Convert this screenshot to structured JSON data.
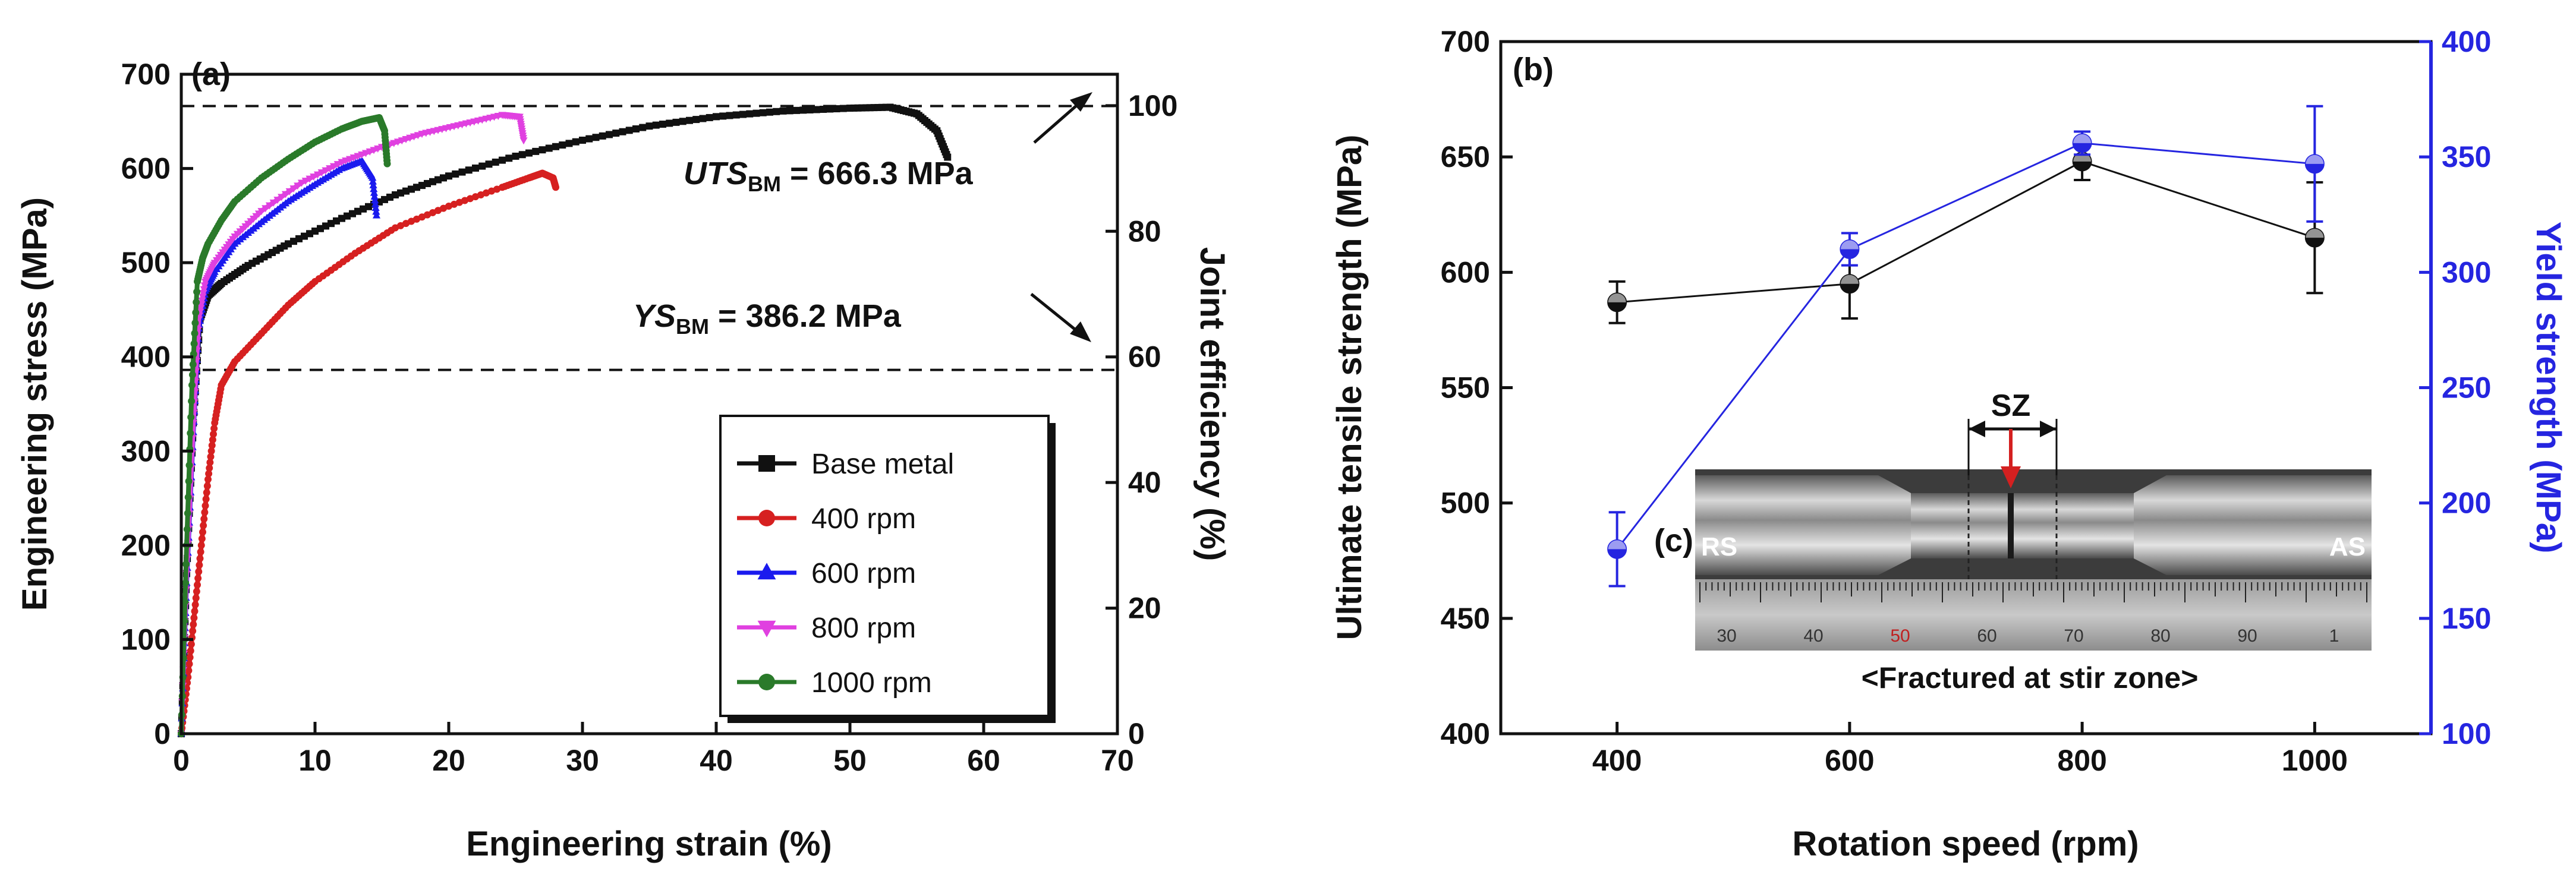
{
  "chart_data": [
    {
      "type": "line",
      "panel_label": "(a)",
      "xlabel": "Engineering strain (%)",
      "ylabel": "Engineering stress (MPa)",
      "y2label": "Joint efficiency (%)",
      "xlim": [
        0,
        70
      ],
      "ylim": [
        0,
        700
      ],
      "y2lim": [
        0,
        105
      ],
      "xticks": [
        0,
        10,
        20,
        30,
        40,
        50,
        60,
        70
      ],
      "yticks": [
        0,
        100,
        200,
        300,
        400,
        500,
        600,
        700
      ],
      "y2ticks": [
        0,
        20,
        40,
        60,
        80,
        100
      ],
      "reference_lines": [
        {
          "name": "UTS_BM",
          "y": 666.3
        },
        {
          "name": "YS_BM",
          "y": 386.2
        }
      ],
      "annotations": {
        "uts_main": "UTS",
        "uts_sub": "BM",
        "uts_value": " = 666.3 MPa",
        "ys_main": "YS",
        "ys_sub": "BM",
        "ys_value": " = 386.2 MPa"
      },
      "legend": {
        "position": "bottom-right"
      },
      "series": [
        {
          "name": "Base metal",
          "color": "#111111",
          "marker": "square",
          "x": [
            0,
            0.4,
            0.9,
            1.4,
            2,
            3,
            5,
            8,
            12,
            16,
            20,
            25,
            30,
            35,
            40,
            45,
            50,
            53,
            55,
            56.5,
            57.3
          ],
          "y": [
            0,
            170,
            330,
            440,
            465,
            478,
            497,
            520,
            547,
            572,
            592,
            613,
            630,
            645,
            655,
            661,
            664,
            665,
            658,
            640,
            612
          ]
        },
        {
          "name": "400 rpm",
          "color": "#d62020",
          "marker": "circle",
          "x": [
            0,
            0.5,
            1,
            1.5,
            2,
            2.5,
            3,
            4,
            6,
            8,
            10,
            13,
            16,
            20,
            24,
            26,
            27,
            27.8,
            28
          ],
          "y": [
            0,
            60,
            130,
            200,
            270,
            330,
            370,
            395,
            425,
            455,
            480,
            510,
            537,
            560,
            580,
            590,
            595,
            590,
            580
          ]
        },
        {
          "name": "600 rpm",
          "color": "#1a1aee",
          "marker": "triangle",
          "x": [
            0,
            0.4,
            0.9,
            1.3,
            1.8,
            2.5,
            4,
            6,
            8,
            10,
            12,
            13.5,
            14.3,
            14.6
          ],
          "y": [
            0,
            160,
            320,
            430,
            470,
            490,
            520,
            543,
            565,
            583,
            600,
            608,
            590,
            550
          ]
        },
        {
          "name": "800 rpm",
          "color": "#e040e0",
          "marker": "triangle-down",
          "x": [
            0,
            0.4,
            0.9,
            1.3,
            1.8,
            2.5,
            4,
            6,
            9,
            12,
            15,
            18,
            21,
            24,
            25.3,
            25.6
          ],
          "y": [
            0,
            170,
            330,
            440,
            480,
            500,
            528,
            555,
            585,
            607,
            623,
            637,
            647,
            657,
            655,
            630
          ]
        },
        {
          "name": "1000 rpm",
          "color": "#2a7a2a",
          "marker": "circle",
          "x": [
            0,
            0.4,
            0.8,
            1.2,
            1.6,
            2,
            3,
            4,
            6,
            8,
            10,
            12,
            13.5,
            14.8,
            15.2,
            15.4
          ],
          "y": [
            0,
            200,
            370,
            480,
            505,
            520,
            545,
            565,
            590,
            610,
            628,
            642,
            650,
            654,
            640,
            605
          ]
        }
      ]
    },
    {
      "type": "line",
      "panel_label": "(b)",
      "xlabel": "Rotation speed (rpm)",
      "ylabel": "Ultimate tensile strength (MPa)",
      "y2label": "Yield strength (MPa)",
      "xlim": [
        300,
        1100
      ],
      "ylim": [
        400,
        700
      ],
      "y2lim": [
        100,
        400
      ],
      "xticks": [
        400,
        600,
        800,
        1000
      ],
      "yticks": [
        400,
        450,
        500,
        550,
        600,
        650,
        700
      ],
      "y2ticks": [
        100,
        150,
        200,
        250,
        300,
        350,
        400
      ],
      "series": [
        {
          "name": "Ultimate tensile strength",
          "axis": "left",
          "color": "#111111",
          "x": [
            400,
            600,
            800,
            1000
          ],
          "y": [
            587,
            595,
            648,
            615
          ],
          "err": [
            9,
            15,
            8,
            24
          ]
        },
        {
          "name": "Yield strength",
          "axis": "right",
          "color": "#2525e0",
          "x": [
            400,
            600,
            800,
            1000
          ],
          "y": [
            180,
            310,
            356,
            347
          ],
          "err": [
            16,
            7,
            5,
            25
          ]
        }
      ],
      "inset": {
        "panel_label": "(c)",
        "sz_label": "SZ",
        "left_label": "RS",
        "right_label": "AS",
        "ruler_marks": [
          "30",
          "40",
          "50",
          "60",
          "70",
          "80",
          "90",
          "1"
        ],
        "caption": "<Fractured at stir zone>"
      }
    }
  ]
}
